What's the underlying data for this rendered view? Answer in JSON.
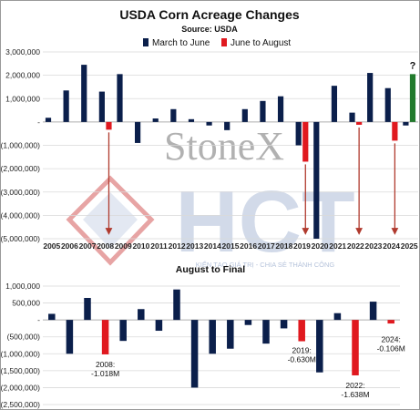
{
  "colors": {
    "navy": "#0b1f4b",
    "red": "#e0191f",
    "green": "#217a2c",
    "arrow": "#b03a2e",
    "grid": "#d9d9d9",
    "watermark_red": "#d14b4b",
    "watermark_blue": "#6c86b6"
  },
  "watermark": {
    "stonex": "StoneX",
    "hct": "HCT",
    "tagline": "KIẾN TẠO GIÁ TRỊ - CHIA SẺ THÀNH CÔNG"
  },
  "chart_data": [
    {
      "type": "bar",
      "title": "USDA Corn Acreage Changes",
      "subtitle": "Source: USDA",
      "categories": [
        "2005",
        "2006",
        "2007",
        "2008",
        "2009",
        "2010",
        "2011",
        "2012",
        "2013",
        "2014",
        "2015",
        "2016",
        "2017",
        "2018",
        "2019",
        "2020",
        "2021",
        "2022",
        "2023",
        "2024",
        "2025"
      ],
      "series": [
        {
          "name": "March to June",
          "color": "#0b1f4b",
          "values": [
            180000,
            1350000,
            2450000,
            1300000,
            2050000,
            -900000,
            150000,
            550000,
            120000,
            -150000,
            -350000,
            550000,
            900000,
            1100000,
            -1000000,
            -5000000,
            1550000,
            400000,
            2100000,
            1450000,
            -150000
          ]
        },
        {
          "name": "June to August",
          "color": "#e0191f",
          "values": [
            null,
            null,
            null,
            -330000,
            null,
            null,
            null,
            null,
            null,
            null,
            null,
            null,
            null,
            null,
            -1700000,
            null,
            null,
            -120000,
            null,
            -800000,
            2050000
          ]
        }
      ],
      "highlight": {
        "category": "2025",
        "label": "?",
        "color": "#217a2c"
      },
      "arrows_from": [
        "2008",
        "2019",
        "2022",
        "2024"
      ],
      "ylim": [
        -5000000,
        3000000
      ],
      "yticks": [
        -5000000,
        -4000000,
        -3000000,
        -2000000,
        -1000000,
        0,
        1000000,
        2000000,
        3000000
      ],
      "ytick_labels": [
        "(5,000,000)",
        "(4,000,000)",
        "(3,000,000)",
        "(2,000,000)",
        "(1,000,000)",
        "-",
        "1,000,000",
        "2,000,000",
        "3,000,000"
      ],
      "grid": true,
      "legend": "top"
    },
    {
      "type": "bar",
      "title": "August to Final",
      "categories": [
        "2005",
        "2006",
        "2007",
        "2008",
        "2009",
        "2010",
        "2011",
        "2012",
        "2013",
        "2014",
        "2015",
        "2016",
        "2017",
        "2018",
        "2019",
        "2020",
        "2021",
        "2022",
        "2023",
        "2024"
      ],
      "values": [
        180000,
        -1000000,
        650000,
        -1018000,
        -620000,
        320000,
        -320000,
        900000,
        -2000000,
        -1000000,
        -850000,
        -150000,
        -700000,
        -250000,
        -630000,
        -1550000,
        200000,
        -1638000,
        540000,
        -106000
      ],
      "highlight_years": [
        "2008",
        "2019",
        "2022",
        "2024"
      ],
      "annotations": [
        {
          "year": "2008",
          "label": "2008:",
          "value": "-1.018M"
        },
        {
          "year": "2019",
          "label": "2019:",
          "value": "-0.630M"
        },
        {
          "year": "2022",
          "label": "2022:",
          "value": "-1.638M"
        },
        {
          "year": "2024",
          "label": "2024:",
          "value": "-0.106M"
        }
      ],
      "ylim": [
        -2500000,
        1000000
      ],
      "yticks": [
        -2500000,
        -2000000,
        -1500000,
        -1000000,
        -500000,
        0,
        500000,
        1000000
      ],
      "ytick_labels": [
        "(2,500,000)",
        "(2,000,000)",
        "(1,500,000)",
        "(1,000,000)",
        "(500,000)",
        "-",
        "500,000",
        "1,000,000"
      ],
      "grid": true
    }
  ]
}
